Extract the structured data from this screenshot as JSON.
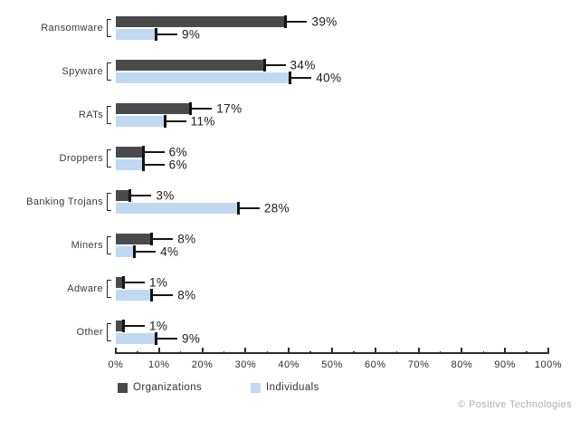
{
  "chart_data": {
    "type": "bar",
    "orientation": "horizontal",
    "title": "",
    "categories": [
      "Ransomware",
      "Spyware",
      "RATs",
      "Droppers",
      "Banking Trojans",
      "Miners",
      "Adware",
      "Other"
    ],
    "series": [
      {
        "name": "Organizations",
        "color": "#4a4a4c",
        "values": [
          39,
          34,
          17,
          6,
          3,
          8,
          1,
          1
        ]
      },
      {
        "name": "Individuals",
        "color": "#c0d9f1",
        "values": [
          9,
          40,
          11,
          6,
          28,
          4,
          8,
          9
        ]
      }
    ],
    "value_suffix": "%",
    "xlim": [
      0,
      100
    ],
    "x_tick_labels": [
      "0%",
      "10%",
      "20%",
      "30%",
      "40%",
      "50%",
      "60%",
      "70%",
      "80%",
      "90%",
      "100%"
    ],
    "x_minor_tick_step": 5,
    "grid": false,
    "legend_position": "bottom",
    "annotation_style": "leader-line-labels"
  },
  "footer": {
    "credit": "© Positive Technologies"
  }
}
